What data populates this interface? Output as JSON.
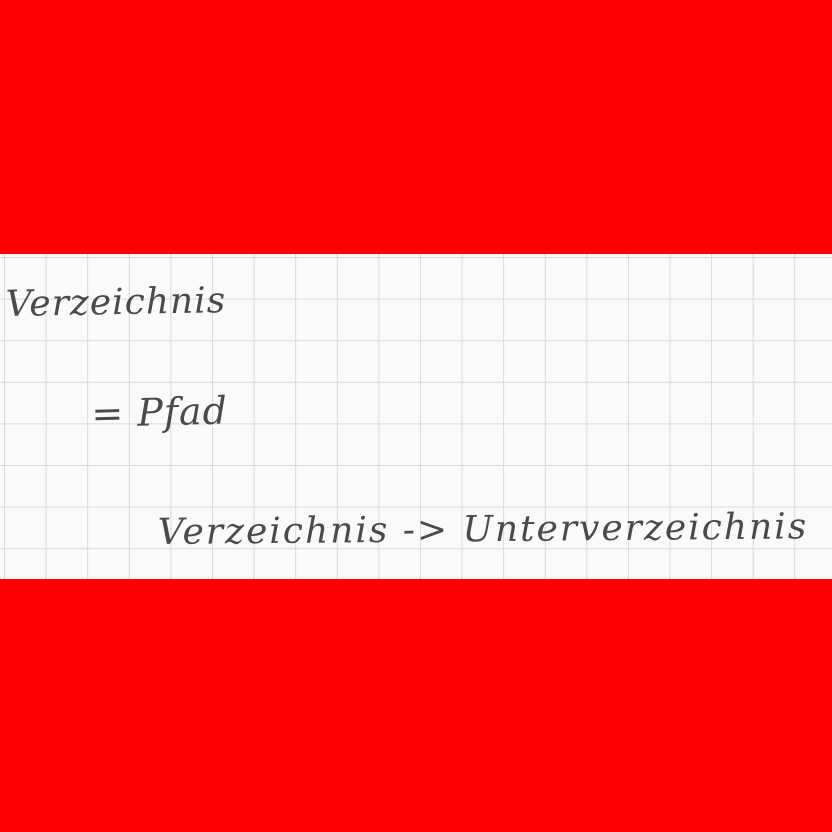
{
  "colors": {
    "band": "#ff0000",
    "paper": "#fafafa",
    "grid": "#d9d9d9",
    "ink": "#4a4a4a"
  },
  "note": {
    "line1": "Verzeichnis",
    "line2": "= Pfad",
    "line3": "Verzeichnis -> Unterverzeichnis"
  }
}
